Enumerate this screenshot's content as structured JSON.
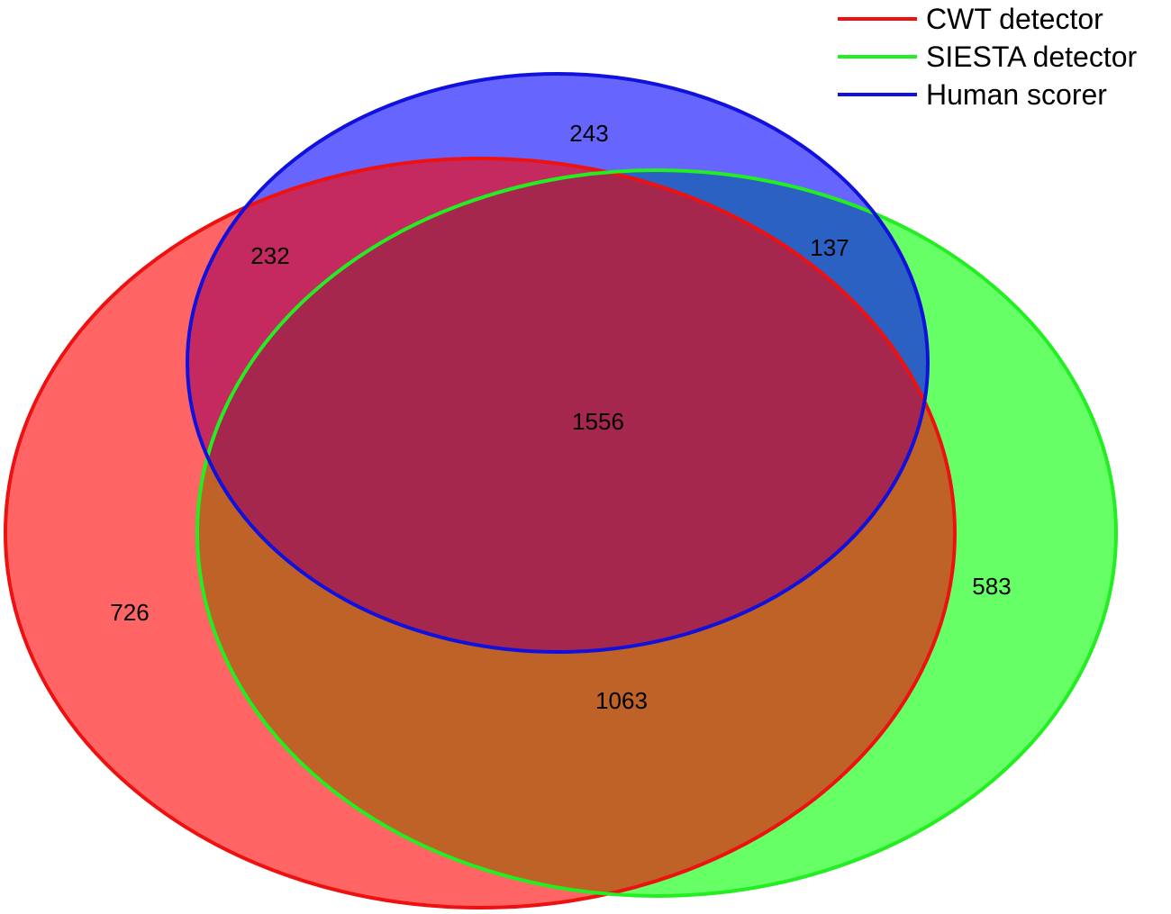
{
  "legend": {
    "items": [
      {
        "label": "CWT detector",
        "color": "#ee1111"
      },
      {
        "label": "SIESTA detector",
        "color": "#22ee22"
      },
      {
        "label": "Human scorer",
        "color": "#1111dd"
      }
    ]
  },
  "sets": {
    "cwt": {
      "fill": "#ff6565",
      "stroke": "#ee1111"
    },
    "siesta": {
      "fill": "#66ff66",
      "stroke": "#22ee22"
    },
    "human": {
      "fill": "#6666ff",
      "stroke": "#1111dd"
    }
  },
  "overlap_colors": {
    "cwt_siesta": "#bf6228",
    "cwt_human": "#c42a60",
    "siesta_human": "#2a61c2",
    "all": "#a6274d"
  },
  "regions": {
    "human_only": "243",
    "cwt_human": "232",
    "siesta_human": "137",
    "all_three": "1556",
    "cwt_only": "726",
    "siesta_only": "583",
    "cwt_siesta": "1063"
  }
}
